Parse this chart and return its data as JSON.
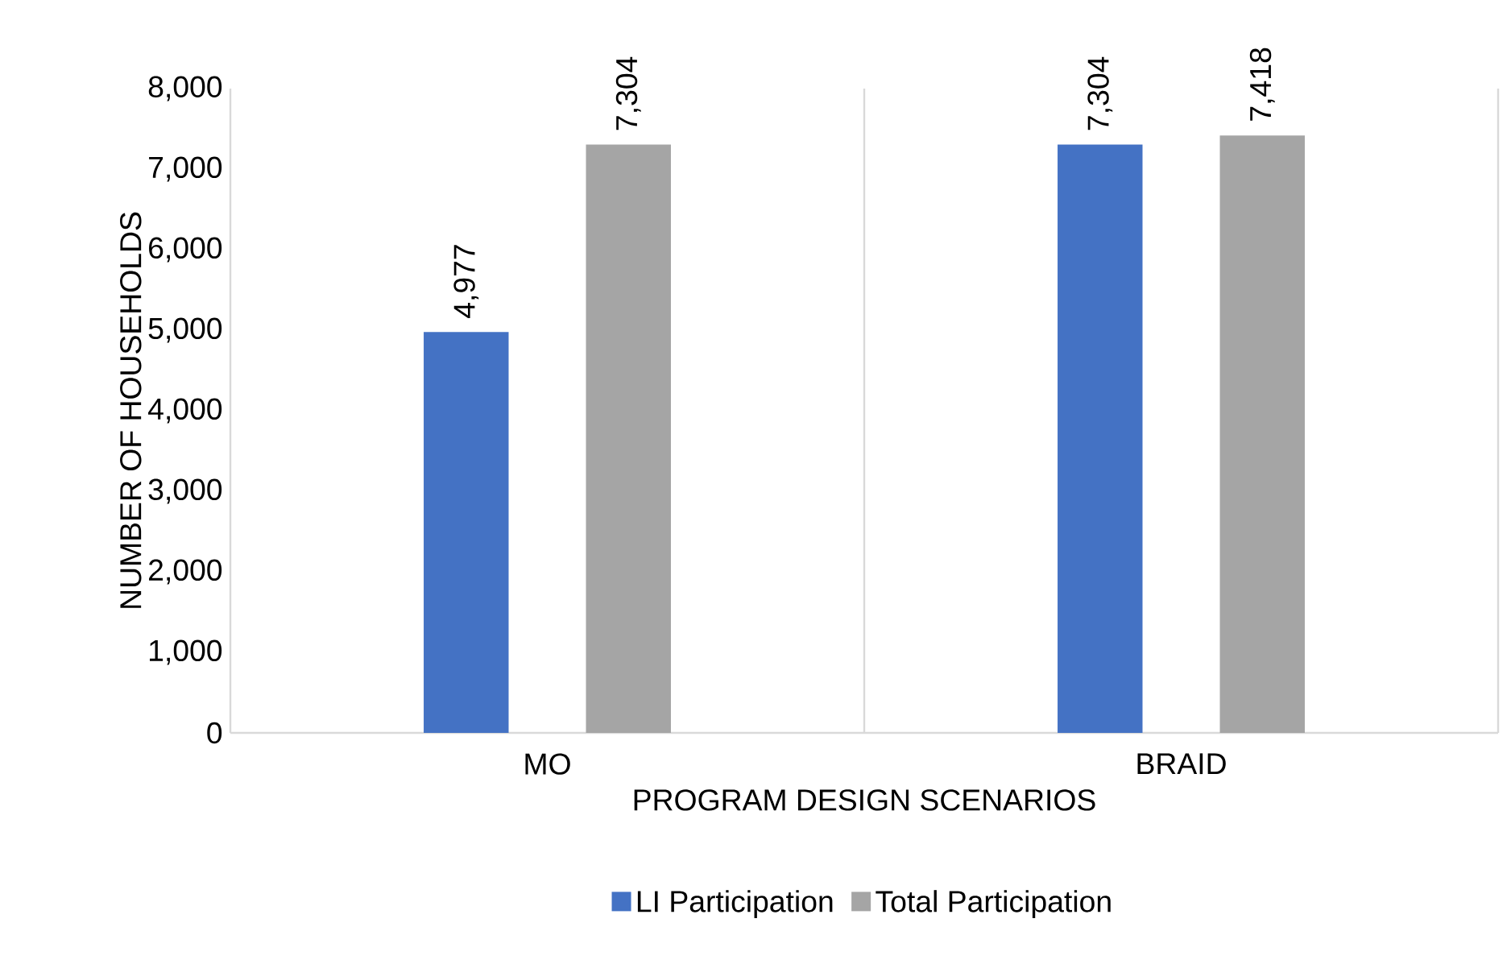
{
  "chart_data": {
    "type": "bar",
    "xlabel": "PROGRAM DESIGN SCENARIOS",
    "ylabel": "NUMBER OF HOUSEHOLDS",
    "categories": [
      "MO",
      "BRAID"
    ],
    "series": [
      {
        "name": "LI Participation",
        "color": "#4472c4",
        "values": [
          4977,
          7304
        ],
        "value_labels": [
          "4,977",
          "7,304"
        ]
      },
      {
        "name": "Total Participation",
        "color": "#a5a5a5",
        "values": [
          7304,
          7418
        ],
        "value_labels": [
          "7,304",
          "7,418"
        ]
      }
    ],
    "ylim": [
      0,
      8000
    ],
    "yticks": [
      {
        "value": 0,
        "label": "0"
      },
      {
        "value": 1000,
        "label": "1,000"
      },
      {
        "value": 2000,
        "label": "2,000"
      },
      {
        "value": 3000,
        "label": "3,000"
      },
      {
        "value": 4000,
        "label": "4,000"
      },
      {
        "value": 5000,
        "label": "5,000"
      },
      {
        "value": 6000,
        "label": "6,000"
      },
      {
        "value": 7000,
        "label": "7,000"
      },
      {
        "value": 8000,
        "label": "8,000"
      }
    ],
    "grid": "x",
    "legend": "bottom"
  }
}
